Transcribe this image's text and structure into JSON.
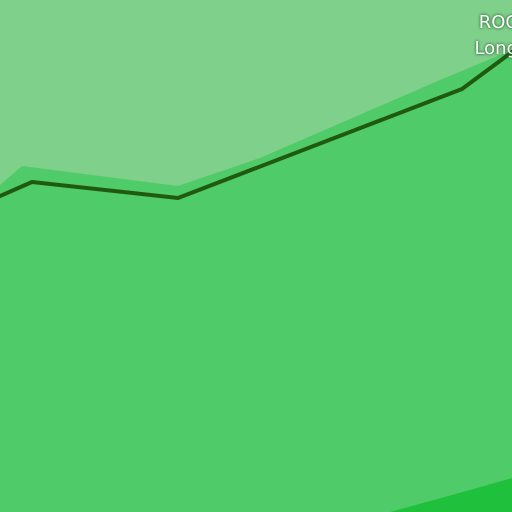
{
  "map": {
    "colors": {
      "parkland_light": "#7ed08a",
      "parkland": "#50cb69",
      "parkland_dark": "#1fc13c",
      "boundary_line": "#1f5a10"
    },
    "labels": {
      "place_line_1": "ROC",
      "place_line_2": "Long"
    }
  }
}
